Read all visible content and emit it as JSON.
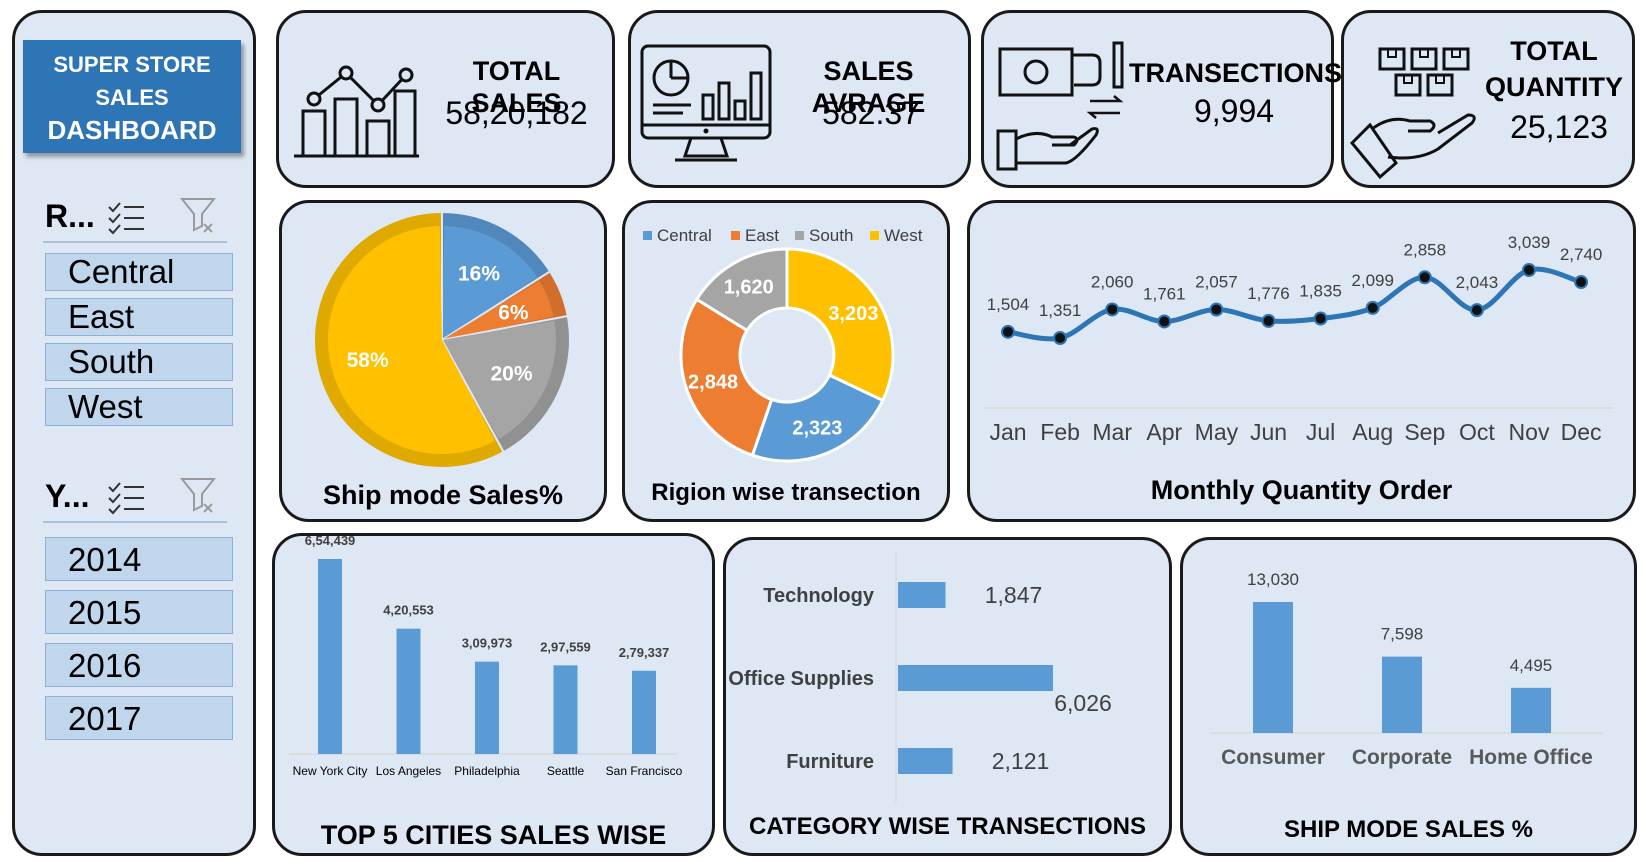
{
  "sidebar": {
    "title_lines": [
      "SUPER STORE",
      "SALES",
      "DASHBOARD"
    ],
    "region_slicer": {
      "header": "R...",
      "multiselect_icon": "checklist-icon",
      "clear_icon": "clear-filter-icon",
      "items": [
        "Central",
        "East",
        "South",
        "West"
      ]
    },
    "year_slicer": {
      "header": "Y...",
      "multiselect_icon": "checklist-icon",
      "clear_icon": "clear-filter-icon",
      "items": [
        "2014",
        "2015",
        "2016",
        "2017"
      ]
    }
  },
  "kpis": [
    {
      "label": "TOTAL SALES",
      "value": "58,20,182",
      "icon": "line-bar-chart-icon"
    },
    {
      "label": "SALES AVRAGE",
      "value": "582.37",
      "icon": "monitor-dashboard-icon"
    },
    {
      "label": "TRANSECTIONS",
      "value": "9,994",
      "icon": "money-exchange-icon"
    },
    {
      "label_lines": [
        "TOTAL",
        "QUANTITY"
      ],
      "value": "25,123",
      "icon": "boxes-in-hand-icon"
    }
  ],
  "colors": {
    "blue": "#5b9bd5",
    "orange": "#ed7d31",
    "gray": "#a5a5a5",
    "yellow": "#ffc000",
    "panel": "#dde8f4",
    "line": "#2e75b6",
    "title_box": "#2e75b6"
  },
  "chart_data": [
    {
      "id": "ship-mode-pie",
      "type": "pie",
      "title": "Ship mode Sales%",
      "slices": [
        {
          "label": "16%",
          "value": 16,
          "color": "#5b9bd5"
        },
        {
          "label": "6%",
          "value": 6,
          "color": "#ed7d31"
        },
        {
          "label": "20%",
          "value": 20,
          "color": "#a5a5a5"
        },
        {
          "label": "58%",
          "value": 58,
          "color": "#ffc000"
        }
      ]
    },
    {
      "id": "region-donut",
      "type": "pie",
      "title": "Rigion wise transection",
      "legend": [
        "Central",
        "East",
        "South",
        "West"
      ],
      "legend_position": "top",
      "slices": [
        {
          "name": "West",
          "value": 3203,
          "label": "3,203",
          "color": "#ffc000"
        },
        {
          "name": "Central",
          "value": 2323,
          "label": "2,323",
          "color": "#5b9bd5"
        },
        {
          "name": "East",
          "value": 2848,
          "label": "2,848",
          "color": "#ed7d31"
        },
        {
          "name": "South",
          "value": 1620,
          "label": "1,620",
          "color": "#a5a5a5"
        }
      ]
    },
    {
      "id": "monthly-quantity",
      "type": "line",
      "title": "Monthly Quantity Order",
      "categories": [
        "Jan",
        "Feb",
        "Mar",
        "Apr",
        "May",
        "Jun",
        "Jul",
        "Aug",
        "Sep",
        "Oct",
        "Nov",
        "Dec"
      ],
      "values": [
        1504,
        1351,
        2060,
        1761,
        2057,
        1776,
        1835,
        2099,
        2858,
        2043,
        3039,
        2740
      ],
      "labels": [
        "1,504",
        "1,351",
        "2,060",
        "1,761",
        "2,057",
        "1,776",
        "1,835",
        "2,099",
        "2,858",
        "2,043",
        "3,039",
        "2,740"
      ]
    },
    {
      "id": "top-cities",
      "type": "bar",
      "title": "TOP 5 CITIES SALES WISE",
      "categories": [
        "New York City",
        "Los Angeles",
        "Philadelphia",
        "Seattle",
        "San Francisco"
      ],
      "values": [
        654439,
        420553,
        309973,
        297559,
        279337
      ],
      "labels": [
        "6,54,439",
        "4,20,553",
        "3,09,973",
        "2,97,559",
        "2,79,337"
      ]
    },
    {
      "id": "category-transactions",
      "type": "bar",
      "orientation": "horizontal",
      "title": "CATEGORY WISE TRANSECTIONS",
      "categories": [
        "Technology",
        "Office Supplies",
        "Furniture"
      ],
      "values": [
        1847,
        6026,
        2121
      ],
      "labels": [
        "1,847",
        "6,026",
        "2,121"
      ]
    },
    {
      "id": "ship-mode-sales",
      "type": "bar",
      "title": "SHIP MODE SALES %",
      "categories": [
        "Consumer",
        "Corporate",
        "Home Office"
      ],
      "values": [
        13030,
        7598,
        4495
      ],
      "labels": [
        "13,030",
        "7,598",
        "4,495"
      ]
    }
  ]
}
